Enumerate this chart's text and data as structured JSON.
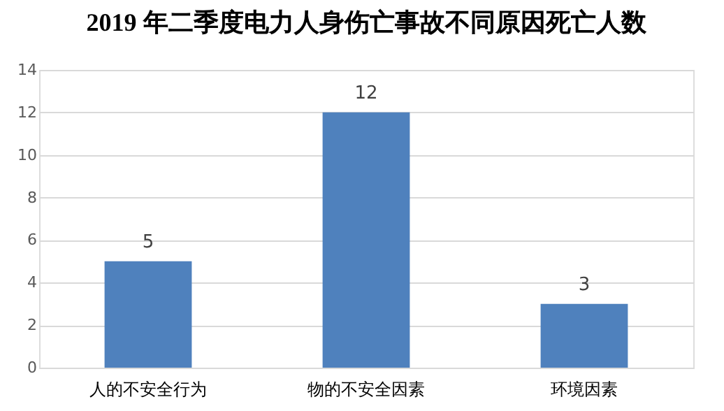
{
  "chart_data": {
    "type": "bar",
    "title": "2019 年二季度电力人身伤亡事故不同原因死亡人数",
    "categories": [
      "人的不安全行为",
      "物的不安全因素",
      "环境因素"
    ],
    "values": [
      5,
      12,
      3
    ],
    "color": "#4f81bd",
    "ylim": [
      0,
      14
    ],
    "yticks": [
      0,
      2,
      4,
      6,
      8,
      10,
      12,
      14
    ],
    "grid": "y",
    "data_labels": true
  }
}
